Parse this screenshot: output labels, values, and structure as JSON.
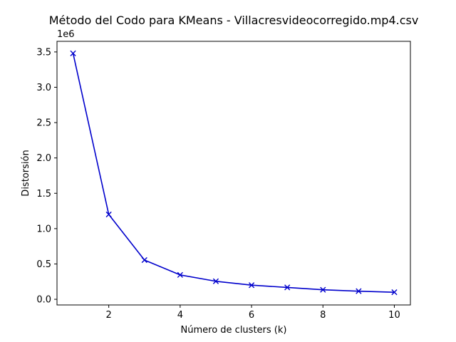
{
  "chart_data": {
    "type": "line",
    "title": "Método del Codo para KMeans - Villacresvideocorregido.mp4.csv",
    "xlabel": "Número de clusters (k)",
    "ylabel": "Distorsión",
    "y_offset_label": "1e6",
    "y_multiplier": 1000000,
    "xlim": [
      0.55,
      10.45
    ],
    "ylim": [
      -80000,
      3650000
    ],
    "x_ticks": [
      2,
      4,
      6,
      8,
      10
    ],
    "y_ticks": [
      0,
      500000,
      1000000,
      1500000,
      2000000,
      2500000,
      3000000,
      3500000
    ],
    "y_tick_labels": [
      "0.0",
      "0.5",
      "1.0",
      "1.5",
      "2.0",
      "2.5",
      "3.0",
      "3.5"
    ],
    "grid": false,
    "series": [
      {
        "color": "#0000cc",
        "marker": "x",
        "x": [
          1,
          2,
          3,
          4,
          5,
          6,
          7,
          8,
          9,
          10
        ],
        "values": [
          3480000,
          1200000,
          555000,
          345000,
          255000,
          200000,
          168000,
          135000,
          115000,
          100000
        ]
      }
    ]
  }
}
